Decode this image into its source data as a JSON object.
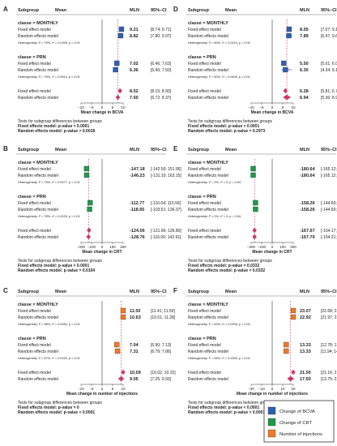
{
  "chart_data": [
    {
      "type": "forest",
      "panel_label": "A",
      "header": {
        "subgroup": "Subgroup",
        "mean": "Mean",
        "mln": "MLN",
        "ci": "95%–CI"
      },
      "groups": [
        {
          "label": "classe = MONTHLY",
          "rows": [
            {
              "label": "Fixed effect model",
              "mln": "9.21",
              "ci": "[8.74; 9.71]",
              "value": 9.21,
              "lo": 8.74,
              "hi": 9.71
            },
            {
              "label": "Random effects model",
              "mln": "8.82",
              "ci": "[7.80; 9.97]",
              "value": 8.82,
              "lo": 7.8,
              "hi": 9.97
            }
          ],
          "heterogeneity": "Heterogeneity: I² = 79%, τ² = 0.0326, p < 0.01"
        },
        {
          "label": "classe = PRN",
          "rows": [
            {
              "label": "Fixed effect model",
              "mln": "7.02",
              "ci": "[6.46; 7.63]",
              "value": 7.02,
              "lo": 6.46,
              "hi": 7.63
            },
            {
              "label": "Random effects model",
              "mln": "6.36",
              "ci": "[5.40; 7.50]",
              "value": 6.36,
              "lo": 5.4,
              "hi": 7.5
            }
          ],
          "heterogeneity": "Heterogeneity: I² = 76%, τ² = 0.0614, p < 0.01"
        }
      ],
      "overall": [
        {
          "label": "Fixed effect model",
          "mln": "8.52",
          "ci": "[8.15; 8.90]",
          "value": 8.52,
          "lo": 8.15,
          "hi": 8.9
        },
        {
          "label": "Random effects model",
          "mln": "7.50",
          "ci": "[6.72; 8.37]",
          "value": 7.5,
          "lo": 6.72,
          "hi": 8.37
        }
      ],
      "xticks": [
        "−10",
        "−5",
        "0",
        "5",
        "10"
      ],
      "xlim": [
        -10,
        10
      ],
      "xlabel": "Mean change in BCVA",
      "tests": [
        "Tests for subgroup differences between groups",
        "Fixed effects model: p-value < 0.0001",
        "Random effects model: p-value = 0.0018"
      ],
      "color": "#2e5fb5"
    },
    {
      "type": "forest",
      "panel_label": "D",
      "header": {
        "subgroup": "Subgroup",
        "mean": "Mean",
        "mln": "MLN",
        "ci": "95%–CI"
      },
      "groups": [
        {
          "label": "classe = MONTHLY",
          "rows": [
            {
              "label": "Fixed effect model",
              "mln": "8.05",
              "ci": "[7.07; 9.16]",
              "value": 8.05,
              "lo": 7.07,
              "hi": 9.16
            },
            {
              "label": "Random effects model",
              "mln": "7.89",
              "ci": "[6.47; 9.62]",
              "value": 7.89,
              "lo": 6.47,
              "hi": 9.62
            }
          ],
          "heterogeneity": "Heterogeneity: I² = 50%, τ² = 0.0214, p = 0.09"
        },
        {
          "label": "classe = PRN",
          "rows": [
            {
              "label": "Fixed effect model",
              "mln": "5.50",
              "ci": "[5.01; 6.05]",
              "value": 5.5,
              "lo": 5.01,
              "hi": 6.05
            },
            {
              "label": "Random effects model",
              "mln": "6.30",
              "ci": "[4.34; 9.16]",
              "value": 6.3,
              "lo": 4.34,
              "hi": 9.16
            }
          ],
          "heterogeneity": "Heterogeneity: I² = 50%, τ² = 0.0629, p = 0.01"
        }
      ],
      "overall": [
        {
          "label": "Fixed effect model",
          "mln": "6.28",
          "ci": "[5.81; 6.77]",
          "value": 6.28,
          "lo": 5.81,
          "hi": 6.77
        },
        {
          "label": "Random effects model",
          "mln": "6.94",
          "ci": "[5.36; 8.94]",
          "value": 6.94,
          "lo": 5.36,
          "hi": 8.94
        }
      ],
      "xticks": [
        "−10",
        "−5",
        "0",
        "5",
        "10"
      ],
      "xlim": [
        -10,
        10
      ],
      "xlabel": "Mean change in BCVA",
      "tests": [
        "Tests for subgroup differences between groups",
        "Fixed effects model: p-value < 0.0001",
        "Random effects model: p-value = 0.2973"
      ],
      "color": "#2e5fb5"
    },
    {
      "type": "forest",
      "panel_label": "B",
      "header": {
        "subgroup": "Subgroup",
        "mean": "Mean",
        "mln": "MLN",
        "ci": "95%–CI"
      },
      "groups": [
        {
          "label": "classe = MONTHLY",
          "rows": [
            {
              "label": "Fixed effect model",
              "mln": "-147.18",
              "ci": "[-142.50; 151.95]",
              "value": -147.18,
              "lo": -151.95,
              "hi": -142.5
            },
            {
              "label": "Random effects model",
              "mln": "-146.23",
              "ci": "[-131.10; 163.15]",
              "value": -146.23,
              "lo": -163.15,
              "hi": -131.1
            }
          ],
          "heterogeneity": "Heterogeneity: I² = 79%, τ² = 0.0077, p < 0.01"
        },
        {
          "label": "classe = PRN",
          "rows": [
            {
              "label": "Fixed effect model",
              "mln": "-112.77",
              "ci": "[-110.04; 115.56]",
              "value": -112.77,
              "lo": -115.56,
              "hi": -110.04
            },
            {
              "label": "Random effects model",
              "mln": "-118.65",
              "ci": "[-103.51; 136.07]",
              "value": -118.65,
              "lo": -136.07,
              "hi": -103.51
            }
          ],
          "heterogeneity": "Heterogeneity: I² = 78%, τ² = 0.0229, p < 0.01"
        }
      ],
      "overall": [
        {
          "label": "Fixed effect model",
          "mln": "-124.06",
          "ci": "[-121.96; 126.80]",
          "value": -124.06,
          "lo": -126.8,
          "hi": -121.96
        },
        {
          "label": "Random effects model",
          "mln": "-128.76",
          "ci": "[-116.00; 142.91]",
          "value": -128.76,
          "lo": -142.91,
          "hi": -116.0
        }
      ],
      "xticks": [
        "−200",
        "−100",
        "0",
        "100",
        "200"
      ],
      "xlim": [
        -200,
        200
      ],
      "xlabel": "Mean change in CRT",
      "tests": [
        "Tests for subgroup differences between groups",
        "Fixed effects model: p-value < 0.0001",
        "Random effects model: p-value = 0.0104"
      ],
      "color": "#1f9a4b"
    },
    {
      "type": "forest",
      "panel_label": "E",
      "header": {
        "subgroup": "Subgroup",
        "mean": "Mean",
        "mln": "MLN",
        "ci": "95%–CI"
      },
      "groups": [
        {
          "label": "classe = MONTHLY",
          "rows": [
            {
              "label": "Fixed effect model",
              "mln": "-180.64",
              "ci": "[-165.12; 209.39]",
              "value": -180.64,
              "lo": -209.39,
              "hi": -165.12
            },
            {
              "label": "Random effects model",
              "mln": "-180.64",
              "ci": "[-165.12; 209.39]",
              "value": -180.64,
              "lo": -209.39,
              "hi": -165.12
            }
          ],
          "heterogeneity": "Heterogeneity: I² = 0%, τ² = 0, p = 0.94"
        },
        {
          "label": "classe = PRN",
          "rows": [
            {
              "label": "Fixed effect model",
              "mln": "-158.26",
              "ci": "[-144.60; 172.96]",
              "value": -158.26,
              "lo": -172.96,
              "hi": -144.6
            },
            {
              "label": "Random effects model",
              "mln": "-158.26",
              "ci": "[-144.60; 172.96]",
              "value": -158.26,
              "lo": -172.96,
              "hi": -144.6
            }
          ],
          "heterogeneity": "Heterogeneity: I² = 0%, τ² = 0, p = 0.94"
        }
      ],
      "overall": [
        {
          "label": "Fixed effect model",
          "mln": "-167.67",
          "ci": "[-154.17; 180.02]",
          "value": -167.67,
          "lo": -180.02,
          "hi": -154.17
        },
        {
          "label": "Random effects model",
          "mln": "-167.70",
          "ci": "[-154.21; 180.37]",
          "value": -167.7,
          "lo": -180.37,
          "hi": -154.21
        }
      ],
      "xticks": [
        "−200",
        "−100",
        "0",
        "100",
        "200"
      ],
      "xlim": [
        -200,
        200
      ],
      "xlabel": "Mean change in CRT",
      "tests": [
        "Tests for subgroup differences between groups",
        "Fixed effects model: p-value = 0.0332",
        "Random effects model: p-value = 0.0332"
      ],
      "color": "#1f9a4b"
    },
    {
      "type": "forest",
      "panel_label": "C",
      "header": {
        "subgroup": "Subgroup",
        "mean": "Mean",
        "mln": "MLN",
        "ci": "95%–CI"
      },
      "groups": [
        {
          "label": "classe = MONTHLY",
          "rows": [
            {
              "label": "Fixed effect model",
              "mln": "11.50",
              "ci": "[11.41; 11.59]",
              "value": 11.5,
              "lo": 11.41,
              "hi": 11.59
            },
            {
              "label": "Random effects model",
              "mln": "10.63",
              "ci": "[10.01; 11.28]",
              "value": 10.63,
              "lo": 10.01,
              "hi": 11.28
            }
          ],
          "heterogeneity": "Heterogeneity: I² = 98%, τ² = 0.0054, p < 0.01"
        },
        {
          "label": "classe = PRN",
          "rows": [
            {
              "label": "Fixed effect model",
              "mln": "7.04",
              "ci": "[6.90; 7.13]",
              "value": 7.04,
              "lo": 6.9,
              "hi": 7.13
            },
            {
              "label": "Random effects model",
              "mln": "7.31",
              "ci": "[6.79; 7.86]",
              "value": 7.31,
              "lo": 6.79,
              "hi": 7.86
            }
          ],
          "heterogeneity": "Heterogeneity: I² = 87%, τ² = 0.0232, p < 0.01"
        }
      ],
      "overall": [
        {
          "label": "Fixed effect model",
          "mln": "10.09",
          "ci": "[10.02; 10.15]",
          "value": 10.09,
          "lo": 10.02,
          "hi": 10.15
        },
        {
          "label": "Random effects model",
          "mln": "9.05",
          "ci": "[7.25; 9.93]",
          "value": 9.05,
          "lo": 7.25,
          "hi": 9.93
        }
      ],
      "xticks": [
        "−10",
        "−5",
        "0",
        "5",
        "10"
      ],
      "xlim": [
        -10,
        10
      ],
      "xlabel": "Mean change in number of injections",
      "tests": [
        "Tests for subgroup differences between groups",
        "Fixed effects model: p-value = 0",
        "Random effects model: p-value < 0.0001"
      ],
      "color": "#f07a2a"
    },
    {
      "type": "forest",
      "panel_label": "F",
      "header": {
        "subgroup": "Subgroup",
        "mean": "Mean",
        "mln": "MLN",
        "ci": "95%–CI"
      },
      "groups": [
        {
          "label": "classe = MONTHLY",
          "rows": [
            {
              "label": "Fixed effect model",
              "mln": "23.07",
              "ci": "[22.68; 23.46]",
              "value": 23.07,
              "lo": 22.68,
              "hi": 23.46
            },
            {
              "label": "Random effects model",
              "mln": "22.92",
              "ci": "[21.97; 23.93]",
              "value": 22.92,
              "lo": 21.97,
              "hi": 23.93
            }
          ],
          "heterogeneity": "Heterogeneity: I² = 62%, τ² = 0.0006, p = 0.02"
        },
        {
          "label": "classe = PRN",
          "rows": [
            {
              "label": "Fixed effect model",
              "mln": "13.33",
              "ci": "[12.78; 13.90]",
              "value": 13.33,
              "lo": 12.78,
              "hi": 13.9
            },
            {
              "label": "Random effects model",
              "mln": "13.33",
              "ci": "[11.94; 14.89]",
              "value": 13.33,
              "lo": 11.94,
              "hi": 14.89
            }
          ],
          "heterogeneity": "Heterogeneity: I² = 84%, τ² = 0.0053, p < 0.01"
        }
      ],
      "overall": [
        {
          "label": "Fixed effect model",
          "mln": "21.50",
          "ci": "[21.16; 21.84]",
          "value": 21.5,
          "lo": 21.16,
          "hi": 21.84
        },
        {
          "label": "Random effects model",
          "mln": "17.50",
          "ci": "[13.75; 22.28]",
          "value": 17.5,
          "lo": 13.75,
          "hi": 22.28
        }
      ],
      "xticks": [
        "−20",
        "−10",
        "0",
        "10",
        "20"
      ],
      "xlim": [
        -20,
        20
      ],
      "xlabel": "Mean change in number of injections",
      "tests": [
        "Tests for subgroup differences between groups",
        "Fixed effects model: p-value < 0.0001",
        "Random effects model: p-value < 0.0001"
      ],
      "color": "#f07a2a"
    }
  ],
  "legend": {
    "items": [
      {
        "label": "Change of BCVA",
        "color": "#2e5fb5"
      },
      {
        "label": "Change of CRT",
        "color": "#1f9a4b"
      },
      {
        "label": "Number of injections",
        "color": "#f07a2a"
      }
    ]
  },
  "diamond_color": "#d6336c"
}
